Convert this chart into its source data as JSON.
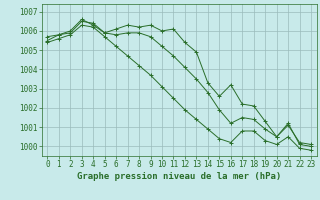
{
  "line1": {
    "x": [
      0,
      1,
      2,
      3,
      4,
      5,
      6,
      7,
      8,
      9,
      10,
      11,
      12,
      13,
      14,
      15,
      16,
      17,
      18,
      19,
      20,
      21,
      22,
      23
    ],
    "y": [
      1005.7,
      1005.8,
      1006.0,
      1006.6,
      1006.3,
      1005.9,
      1006.1,
      1006.3,
      1006.2,
      1006.3,
      1006.0,
      1006.1,
      1005.4,
      1004.9,
      1003.3,
      1002.6,
      1003.2,
      1002.2,
      1002.1,
      1001.3,
      1000.5,
      1001.2,
      1000.1,
      1000.0
    ]
  },
  "line2": {
    "x": [
      0,
      1,
      2,
      3,
      4,
      5,
      6,
      7,
      8,
      9,
      10,
      11,
      12,
      13,
      14,
      15,
      16,
      17,
      18,
      19,
      20,
      21,
      22,
      23
    ],
    "y": [
      1005.5,
      1005.8,
      1005.9,
      1006.5,
      1006.4,
      1005.9,
      1005.8,
      1005.9,
      1005.9,
      1005.7,
      1005.2,
      1004.7,
      1004.1,
      1003.5,
      1002.8,
      1001.9,
      1001.2,
      1001.5,
      1001.4,
      1000.9,
      1000.5,
      1001.1,
      1000.2,
      1000.1
    ]
  },
  "line3": {
    "x": [
      0,
      1,
      2,
      3,
      4,
      5,
      6,
      7,
      8,
      9,
      10,
      11,
      12,
      13,
      14,
      15,
      16,
      17,
      18,
      19,
      20,
      21,
      22,
      23
    ],
    "y": [
      1005.4,
      1005.6,
      1005.8,
      1006.3,
      1006.2,
      1005.7,
      1005.2,
      1004.7,
      1004.2,
      1003.7,
      1003.1,
      1002.5,
      1001.9,
      1001.4,
      1000.9,
      1000.4,
      1000.2,
      1000.8,
      1000.8,
      1000.3,
      1000.1,
      1000.5,
      999.9,
      999.8
    ]
  },
  "ylim": [
    999.5,
    1007.4
  ],
  "yticks": [
    1000,
    1001,
    1002,
    1003,
    1004,
    1005,
    1006,
    1007
  ],
  "xlim": [
    -0.5,
    23.5
  ],
  "xticks": [
    0,
    1,
    2,
    3,
    4,
    5,
    6,
    7,
    8,
    9,
    10,
    11,
    12,
    13,
    14,
    15,
    16,
    17,
    18,
    19,
    20,
    21,
    22,
    23
  ],
  "xlabel": "Graphe pression niveau de la mer (hPa)",
  "line_color": "#2a6e2a",
  "bg_color": "#c8eaea",
  "plot_bg_color": "#c8eaea",
  "grid_color": "#9bbcbc",
  "fontsize_label": 6.5,
  "fontsize_tick": 5.5
}
